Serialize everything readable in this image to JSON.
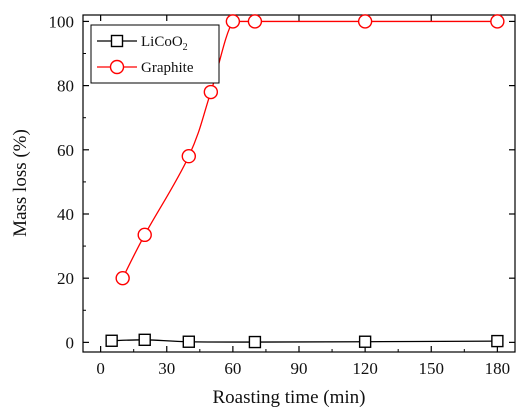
{
  "chart_data": {
    "type": "line",
    "xlabel": "Roasting time (min)",
    "ylabel": "Mass loss (%)",
    "xlim": [
      -8,
      188
    ],
    "ylim": [
      -3,
      102
    ],
    "xticks": [
      0,
      30,
      60,
      90,
      120,
      150,
      180
    ],
    "yticks": [
      0,
      20,
      40,
      60,
      80,
      100
    ],
    "grid": false,
    "legend": "top-left",
    "series": [
      {
        "name": "LiCoO",
        "name_subscript": "2",
        "marker": "square",
        "color": "#000000",
        "x": [
          5,
          20,
          40,
          70,
          120,
          180
        ],
        "y": [
          0.5,
          0.8,
          0.2,
          0.1,
          0.2,
          0.4
        ]
      },
      {
        "name": "Graphite",
        "marker": "circle",
        "color": "#ff0000",
        "x": [
          10,
          20,
          40,
          50,
          60,
          70,
          120,
          180
        ],
        "y": [
          20,
          33.5,
          58,
          78,
          100,
          100,
          100,
          100
        ]
      }
    ]
  }
}
